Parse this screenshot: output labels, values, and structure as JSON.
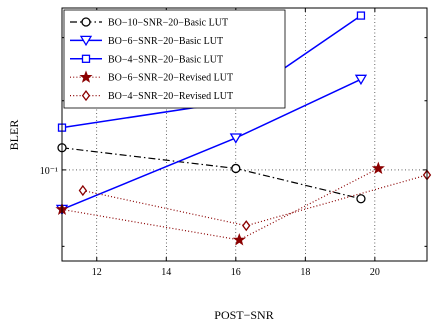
{
  "chart_data": {
    "type": "line",
    "xlabel": "POST−SNR",
    "ylabel": "BLER",
    "xlim": [
      11,
      21.5
    ],
    "ylim": [
      0.0882,
      0.125
    ],
    "yscale": "log",
    "grid": true,
    "legend_placement": "top-left",
    "x_ticks": [
      {
        "value": 12,
        "label": "12"
      },
      {
        "value": 14,
        "label": "14"
      },
      {
        "value": 16,
        "label": "16"
      },
      {
        "value": 18,
        "label": "18"
      },
      {
        "value": 20,
        "label": "20"
      }
    ],
    "y_ticks": [
      {
        "value": 0.1,
        "label": "10⁻¹"
      }
    ],
    "series": [
      {
        "name": "BO−10−SNR−20−Basic LUT",
        "color": "#000000",
        "line": "dashdot",
        "marker": "circle",
        "x": [
          11,
          16,
          19.6
        ],
        "y": [
          0.1031,
          0.1002,
          0.0961
        ]
      },
      {
        "name": "BO−6−SNR−20−Basic LUT",
        "color": "#0000ff",
        "line": "solid",
        "marker": "triangle-down",
        "x": [
          11,
          16,
          19.6
        ],
        "y": [
          0.0947,
          0.1045,
          0.1133
        ]
      },
      {
        "name": "BO−4−SNR−20−Basic LUT",
        "color": "#0000ff",
        "line": "solid",
        "marker": "square",
        "x": [
          11,
          16,
          19.6
        ],
        "y": [
          0.106,
          0.1099,
          0.1237
        ]
      },
      {
        "name": "BO−6−SNR−20−Revised LUT",
        "color": "#8b0000",
        "line": "dotted",
        "marker": "star",
        "x": [
          11,
          16.1,
          20.1
        ],
        "y": [
          0.0947,
          0.0908,
          0.1002
        ]
      },
      {
        "name": "BO−4−SNR−20−Revised LUT",
        "color": "#8b0000",
        "line": "dotted",
        "marker": "diamond",
        "x": [
          11.6,
          16.3,
          21.5
        ],
        "y": [
          0.0972,
          0.0926,
          0.0993
        ]
      }
    ]
  }
}
